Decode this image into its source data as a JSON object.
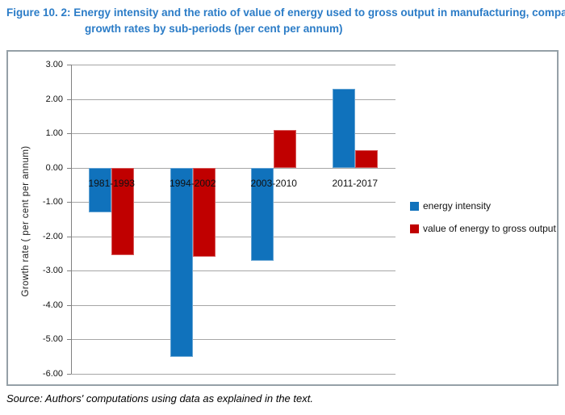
{
  "figure": {
    "label": "Figure 10. 2:",
    "title": "Energy intensity and the ratio of value of energy used to gross output in manufacturing, comparison of growth rates by sub-periods (per cent per annum)"
  },
  "source_note": "Source: Authors' computations using data as explained in the text.",
  "colors": {
    "title_blue": "#2B7CC7",
    "series_blue": "#1072BC",
    "series_red": "#C00000",
    "gridline": "#A6A6A6",
    "axis": "#808080",
    "chart_border": "#95A0A7",
    "label_text": "#111111"
  },
  "chart_data": {
    "type": "bar",
    "title": "",
    "categories": [
      "1981-1993",
      "1994-2002",
      "2003-2010",
      "2011-2017"
    ],
    "series": [
      {
        "name": "energy intensity",
        "color_key": "series_blue",
        "values": [
          -1.3,
          -5.5,
          -2.7,
          2.3
        ]
      },
      {
        "name": "value of energy to gross output",
        "color_key": "series_red",
        "values": [
          -2.55,
          -2.6,
          1.1,
          0.5
        ]
      }
    ],
    "xlabel": "",
    "ylabel": "Growth rate ( per cent per annum)",
    "ylim": [
      -6,
      3
    ],
    "ytick_step": 1,
    "ytick_labels": [
      "3.00",
      "2.00",
      "1.00",
      "0.00",
      "-1.00",
      "-2.00",
      "-3.00",
      "-4.00",
      "-5.00",
      "-6.00"
    ],
    "grid": true,
    "legend_position": "right-middle"
  }
}
